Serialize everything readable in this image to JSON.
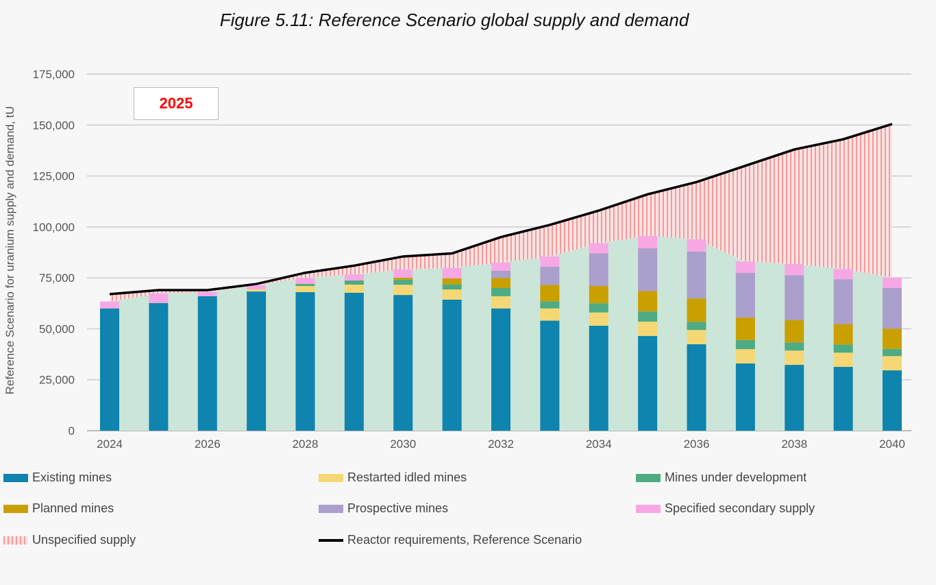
{
  "chart_data": {
    "type": "bar",
    "stacked": true,
    "title": "Figure 5.11: Reference Scenario global supply and demand",
    "ylabel": "Reference Scenario for uranium supply and demand, tU",
    "xlabel": "",
    "annotation": "2025",
    "ylim": [
      0,
      175000
    ],
    "yticks": [
      "0",
      "25,000",
      "50,000",
      "75,000",
      "100,000",
      "125,000",
      "150,000",
      "175,000"
    ],
    "ytick_values": [
      0,
      25000,
      50000,
      75000,
      100000,
      125000,
      150000,
      175000
    ],
    "categories": [
      2024,
      2025,
      2026,
      2027,
      2028,
      2029,
      2030,
      2031,
      2032,
      2033,
      2034,
      2035,
      2036,
      2037,
      2038,
      2039,
      2040
    ],
    "xtick_labels": [
      "2024",
      "2026",
      "2028",
      "2030",
      "2032",
      "2034",
      "2036",
      "2038",
      "2040"
    ],
    "grid": true,
    "legend_position": "bottom",
    "series": [
      {
        "name": "Existing mines",
        "color": "#0e84ae",
        "values": [
          60000,
          62600,
          66000,
          68300,
          68000,
          67700,
          66600,
          64300,
          60000,
          54000,
          51500,
          46500,
          42400,
          33000,
          32300,
          31300,
          29600
        ]
      },
      {
        "name": "Restarted idled mines",
        "color": "#f5d875",
        "values": [
          0,
          0,
          0,
          1000,
          3000,
          4000,
          5000,
          5000,
          6000,
          6000,
          6500,
          7000,
          7000,
          7000,
          7000,
          7000,
          7000
        ]
      },
      {
        "name": "Mines under development",
        "color": "#4eab83",
        "values": [
          0,
          0,
          0,
          0,
          1000,
          2000,
          2500,
          2500,
          4000,
          3500,
          4500,
          5000,
          4000,
          4500,
          4000,
          4000,
          3500
        ]
      },
      {
        "name": "Planned mines",
        "color": "#c9a000",
        "values": [
          0,
          0,
          0,
          0,
          0,
          0,
          1000,
          3000,
          5000,
          8000,
          8500,
          10000,
          11500,
          11000,
          11000,
          10000,
          10000
        ]
      },
      {
        "name": "Prospective mines",
        "color": "#ab9fcc",
        "values": [
          0,
          0,
          0,
          0,
          0,
          0,
          0,
          0,
          3500,
          9000,
          16000,
          21000,
          23000,
          22000,
          22000,
          22000,
          20000
        ]
      },
      {
        "name": "Specified secondary supply",
        "color": "#f7a8e4",
        "values": [
          3400,
          4700,
          2000,
          2000,
          3000,
          3000,
          4000,
          5000,
          4000,
          5000,
          5000,
          6000,
          6000,
          5500,
          5500,
          5000,
          5000
        ]
      }
    ],
    "unspecified_supply": {
      "name": "Unspecified supply",
      "color": "#f08a8a"
    },
    "line": {
      "name": "Reactor requirements, Reference Scenario",
      "color": "#000000",
      "values": [
        67000,
        69000,
        69000,
        72000,
        77500,
        81000,
        85500,
        87000,
        95000,
        101000,
        108000,
        116000,
        122000,
        130000,
        138000,
        143000,
        150500
      ]
    },
    "supply_area_color": "#cce5d9"
  }
}
